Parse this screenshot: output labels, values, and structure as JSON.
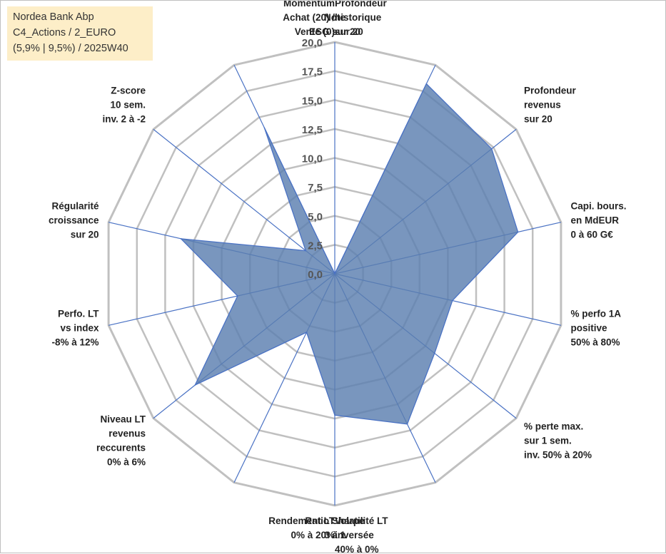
{
  "info_box": {
    "line1": "Nordea Bank Abp",
    "line2": "C4_Actions / 2_EURO",
    "line3": "(5,9% | 9,5%) / 2025W40"
  },
  "colors": {
    "fill": "#5b7fb0",
    "stroke": "#4a72c4",
    "grid": "#c0c0c0",
    "spoke": "#4a72c4"
  },
  "chart_data": {
    "type": "radar",
    "title": "Nordea Bank Abp",
    "rlim": [
      0,
      20
    ],
    "ticks": [
      "0,0",
      "2,5",
      "5,0",
      "7,5",
      "10,0",
      "12,5",
      "15,0",
      "17,5",
      "20,0"
    ],
    "tick_values": [
      0,
      2.5,
      5,
      7.5,
      10,
      12.5,
      15,
      17.5,
      20
    ],
    "axes": [
      {
        "label": [
          "Note",
          "ESG sur 20"
        ],
        "value": 0
      },
      {
        "label": [
          "Profondeur",
          "historique",
          "sur 20"
        ],
        "value": 18.2
      },
      {
        "label": [
          "Profondeur",
          "revenus",
          "sur 20"
        ],
        "value": 17.3
      },
      {
        "label": [
          "Capi. bours.",
          "en MdEUR",
          "0 à 60 G€"
        ],
        "value": 16.2
      },
      {
        "label": [
          "% perfo 1A",
          "positive",
          "50% à 80%"
        ],
        "value": 10.4
      },
      {
        "label": [
          "% perte max.",
          "sur 1 sem.",
          "inv. 50% à 20%"
        ],
        "value": 11.0
      },
      {
        "label": [
          "Volatilité LT",
          "inversée",
          "40% à 0%"
        ],
        "value": 14.4
      },
      {
        "label": [
          "Ratio Sharpe",
          "0 à 1"
        ],
        "value": 12.2
      },
      {
        "label": [
          "Rendement LT",
          "0% à 20%"
        ],
        "value": 5.6
      },
      {
        "label": [
          "Niveau LT",
          "revenus",
          "reccurents",
          "0% à 6%"
        ],
        "value": 15.4
      },
      {
        "label": [
          "Perfo. LT",
          "vs index",
          "-8% à 12%"
        ],
        "value": 8.6
      },
      {
        "label": [
          "Régularité",
          "croissance",
          "sur 20"
        ],
        "value": 13.6
      },
      {
        "label": [
          "Z-score",
          "10 sem.",
          "inv. 2 à -2"
        ],
        "value": 3.2
      },
      {
        "label": [
          "Momentum",
          "Achat (20) /",
          "Vente (0)"
        ],
        "value": 14.0
      }
    ]
  }
}
